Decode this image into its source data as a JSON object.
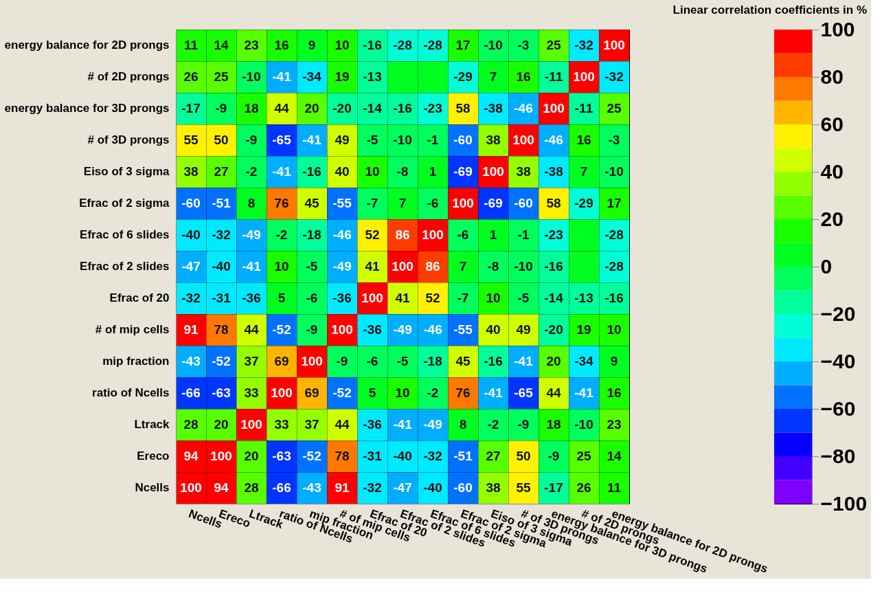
{
  "chart_data": {
    "type": "heatmap",
    "title": "Linear correlation coefficients in %",
    "categories": [
      "Ncells",
      "Ereco",
      "Ltrack",
      "ratio of Ncells",
      "mip fraction",
      "# of mip cells",
      "Efrac of 20",
      "Efrac of 2 slides",
      "Efrac of 6 slides",
      "Efrac of 2 sigma",
      "Eiso of 3 sigma",
      "# of 3D prongs",
      "energy balance for 3D prongs",
      "# of 2D prongs",
      "energy balance for 2D prongs"
    ],
    "y_categories": [
      "energy balance for 2D prongs",
      "# of 2D prongs",
      "energy balance for 3D prongs",
      "# of 3D prongs",
      "Eiso of 3 sigma",
      "Efrac of 2 sigma",
      "Efrac of 6 slides",
      "Efrac of 2 slides",
      "Efrac of 20",
      "# of mip cells",
      "mip fraction",
      "ratio of Ncells",
      "Ltrack",
      "Ereco",
      "Ncells"
    ],
    "cells": [
      [
        11,
        14,
        23,
        16,
        9,
        10,
        -16,
        -28,
        -28,
        17,
        -10,
        -3,
        25,
        -32,
        100
      ],
      [
        26,
        25,
        -10,
        -41,
        -34,
        19,
        -13,
        0,
        0,
        -29,
        7,
        16,
        -11,
        100,
        -32
      ],
      [
        -17,
        -9,
        18,
        44,
        20,
        -20,
        -14,
        -16,
        -23,
        58,
        -38,
        -46,
        100,
        -11,
        25
      ],
      [
        55,
        50,
        -9,
        -65,
        -41,
        49,
        -5,
        -10,
        -1,
        -60,
        38,
        100,
        -46,
        16,
        -3
      ],
      [
        38,
        27,
        -2,
        -41,
        -16,
        40,
        10,
        -8,
        1,
        -69,
        100,
        38,
        -38,
        7,
        -10
      ],
      [
        -60,
        -51,
        8,
        76,
        45,
        -55,
        -7,
        7,
        -6,
        100,
        -69,
        -60,
        58,
        -29,
        17
      ],
      [
        -40,
        -32,
        -49,
        -2,
        -18,
        -46,
        52,
        86,
        100,
        -6,
        1,
        -1,
        -23,
        0,
        -28
      ],
      [
        -47,
        -40,
        -41,
        10,
        -5,
        -49,
        41,
        100,
        86,
        7,
        -8,
        -10,
        -16,
        0,
        -28
      ],
      [
        -32,
        -31,
        -36,
        5,
        -6,
        -36,
        100,
        41,
        52,
        -7,
        10,
        -5,
        -14,
        -13,
        -16
      ],
      [
        91,
        78,
        44,
        -52,
        -9,
        100,
        -36,
        -49,
        -46,
        -55,
        40,
        49,
        -20,
        19,
        10
      ],
      [
        -43,
        -52,
        37,
        69,
        100,
        -9,
        -6,
        -5,
        -18,
        45,
        -16,
        -41,
        20,
        -34,
        9
      ],
      [
        -66,
        -63,
        33,
        100,
        69,
        -52,
        5,
        10,
        -2,
        76,
        -41,
        -65,
        44,
        -41,
        16
      ],
      [
        28,
        20,
        100,
        33,
        37,
        44,
        -36,
        -41,
        -49,
        8,
        -2,
        -9,
        18,
        -10,
        23
      ],
      [
        94,
        100,
        20,
        -63,
        -52,
        78,
        -31,
        -40,
        -32,
        -51,
        27,
        50,
        -9,
        25,
        14
      ],
      [
        100,
        94,
        28,
        -66,
        -43,
        91,
        -32,
        -47,
        -40,
        -60,
        38,
        55,
        -17,
        26,
        11
      ]
    ],
    "cell_labels": [
      [
        "11",
        "14",
        "23",
        "16",
        "9",
        "10",
        "-16",
        "-28",
        "-28",
        "17",
        "-10",
        "-3",
        "25",
        "-32",
        "100"
      ],
      [
        "26",
        "25",
        "-10",
        "-41",
        "-34",
        "19",
        "-13",
        null,
        null,
        "-29",
        "7",
        "16",
        "-11",
        "100",
        "-32"
      ],
      [
        "-17",
        "-9",
        "18",
        "44",
        "20",
        "-20",
        "-14",
        "-16",
        "-23",
        "58",
        "-38",
        "-46",
        "100",
        "-11",
        "25"
      ],
      [
        "55",
        "50",
        "-9",
        "-65",
        "-41",
        "49",
        "-5",
        "-10",
        "-1",
        "-60",
        "38",
        "100",
        "-46",
        "16",
        "-3"
      ],
      [
        "38",
        "27",
        "-2",
        "-41",
        "-16",
        "40",
        "10",
        "-8",
        "1",
        "-69",
        "100",
        "38",
        "-38",
        "7",
        "-10"
      ],
      [
        "-60",
        "-51",
        "8",
        "76",
        "45",
        "-55",
        "-7",
        "7",
        "-6",
        "100",
        "-69",
        "-60",
        "58",
        "-29",
        "17"
      ],
      [
        "-40",
        "-32",
        "-49",
        "-2",
        "-18",
        "-46",
        "52",
        "86",
        "100",
        "-6",
        "1",
        "-1",
        "-23",
        null,
        "-28"
      ],
      [
        "-47",
        "-40",
        "-41",
        "10",
        "-5",
        "-49",
        "41",
        "100",
        "86",
        "7",
        "-8",
        "-10",
        "-16",
        null,
        "-28"
      ],
      [
        "-32",
        "-31",
        "-36",
        "5",
        "-6",
        "-36",
        "100",
        "41",
        "52",
        "-7",
        "10",
        "-5",
        "-14",
        "-13",
        "-16"
      ],
      [
        "91",
        "78",
        "44",
        "-52",
        "-9",
        "100",
        "-36",
        "-49",
        "-46",
        "-55",
        "40",
        "49",
        "-20",
        "19",
        "10"
      ],
      [
        "-43",
        "-52",
        "37",
        "69",
        "100",
        "-9",
        "-6",
        "-5",
        "-18",
        "45",
        "-16",
        "-41",
        "20",
        "-34",
        "9"
      ],
      [
        "-66",
        "-63",
        "33",
        "100",
        "69",
        "-52",
        "5",
        "10",
        "-2",
        "76",
        "-41",
        "-65",
        "44",
        "-41",
        "16"
      ],
      [
        "28",
        "20",
        "100",
        "33",
        "37",
        "44",
        "-36",
        "-41",
        "-49",
        "8",
        "-2",
        "-9",
        "18",
        "-10",
        "23"
      ],
      [
        "94",
        "100",
        "20",
        "-63",
        "-52",
        "78",
        "-31",
        "-40",
        "-32",
        "-51",
        "27",
        "50",
        "-9",
        "25",
        "14"
      ],
      [
        "100",
        "94",
        "28",
        "-66",
        "-43",
        "91",
        "-32",
        "-47",
        "-40",
        "-60",
        "38",
        "55",
        "-17",
        "26",
        "11"
      ]
    ],
    "clim": [
      -100,
      100
    ],
    "cticks": [
      -100,
      -80,
      -60,
      -40,
      -20,
      0,
      20,
      40,
      60,
      80,
      100
    ],
    "grid": true
  }
}
